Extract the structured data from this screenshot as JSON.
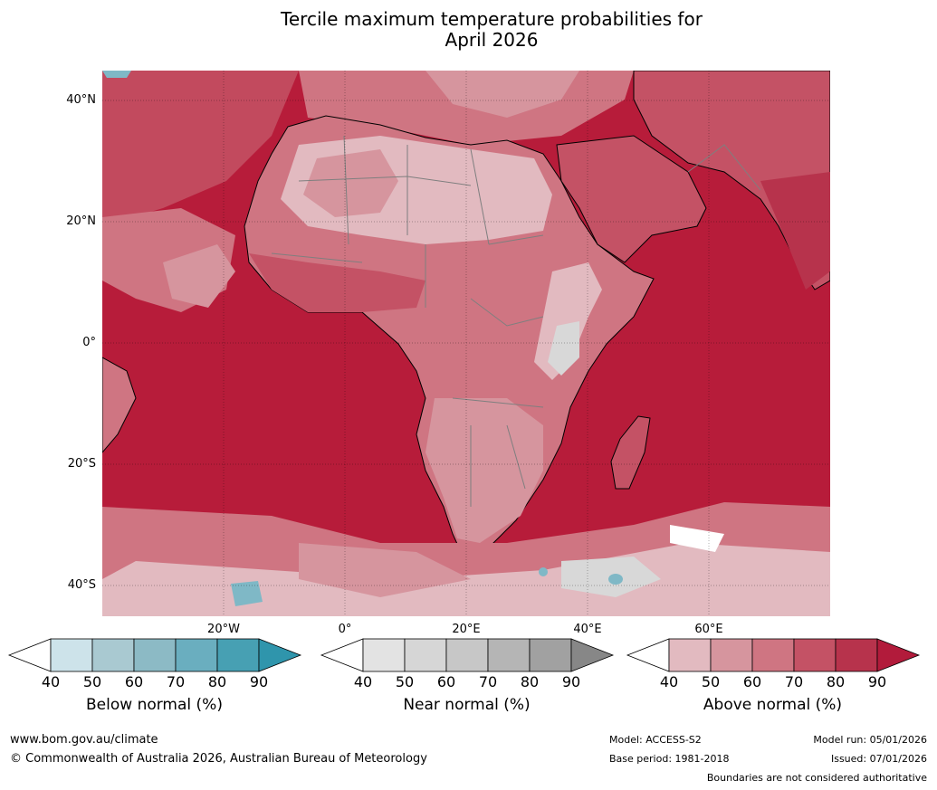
{
  "title_line1": "Tercile maximum temperature probabilities for",
  "title_line2": "April 2026",
  "map": {
    "lat_labels": [
      "40°N",
      "20°N",
      "0°",
      "20°S",
      "40°S"
    ],
    "lon_labels": [
      "20°W",
      "0°",
      "20°E",
      "40°E",
      "60°E"
    ],
    "colors": {
      "ocean_dominant": "#b71c3a",
      "above_70": "#c45265",
      "above_60": "#cf7582",
      "above_50": "#d6959e",
      "above_40": "#e2bac0",
      "near_normal": "#d8d8d8",
      "below_normal": "#7fb8c6",
      "coastline": "#000000",
      "borders": "#7f7f7f"
    }
  },
  "colorbars": [
    {
      "label": "Below normal (%)",
      "ticks": [
        "40",
        "50",
        "60",
        "70",
        "80",
        "90"
      ],
      "colors": [
        "#ffffff",
        "#cde3ea",
        "#a9c9d1",
        "#8cbac5",
        "#6aaebf",
        "#47a0b3",
        "#2f95ac"
      ]
    },
    {
      "label": "Near normal (%)",
      "ticks": [
        "40",
        "50",
        "60",
        "70",
        "80",
        "90"
      ],
      "colors": [
        "#ffffff",
        "#e3e3e3",
        "#d6d6d6",
        "#c7c7c7",
        "#b5b5b5",
        "#a1a1a1",
        "#878787"
      ]
    },
    {
      "label": "Above normal (%)",
      "ticks": [
        "40",
        "50",
        "60",
        "70",
        "80",
        "90"
      ],
      "colors": [
        "#ffffff",
        "#e2bac0",
        "#d6959e",
        "#cf7582",
        "#c45265",
        "#b7334c",
        "#b21b3b"
      ]
    }
  ],
  "footer": {
    "url": "www.bom.gov.au/climate",
    "copyright": "© Commonwealth of Australia 2026, Australian Bureau of Meteorology",
    "model": "Model: ACCESS-S2",
    "base_period": "Base period: 1981-2018",
    "model_run": "Model run: 05/01/2026",
    "issued": "Issued: 07/01/2026",
    "disclaimer": "Boundaries are not considered authoritative"
  }
}
